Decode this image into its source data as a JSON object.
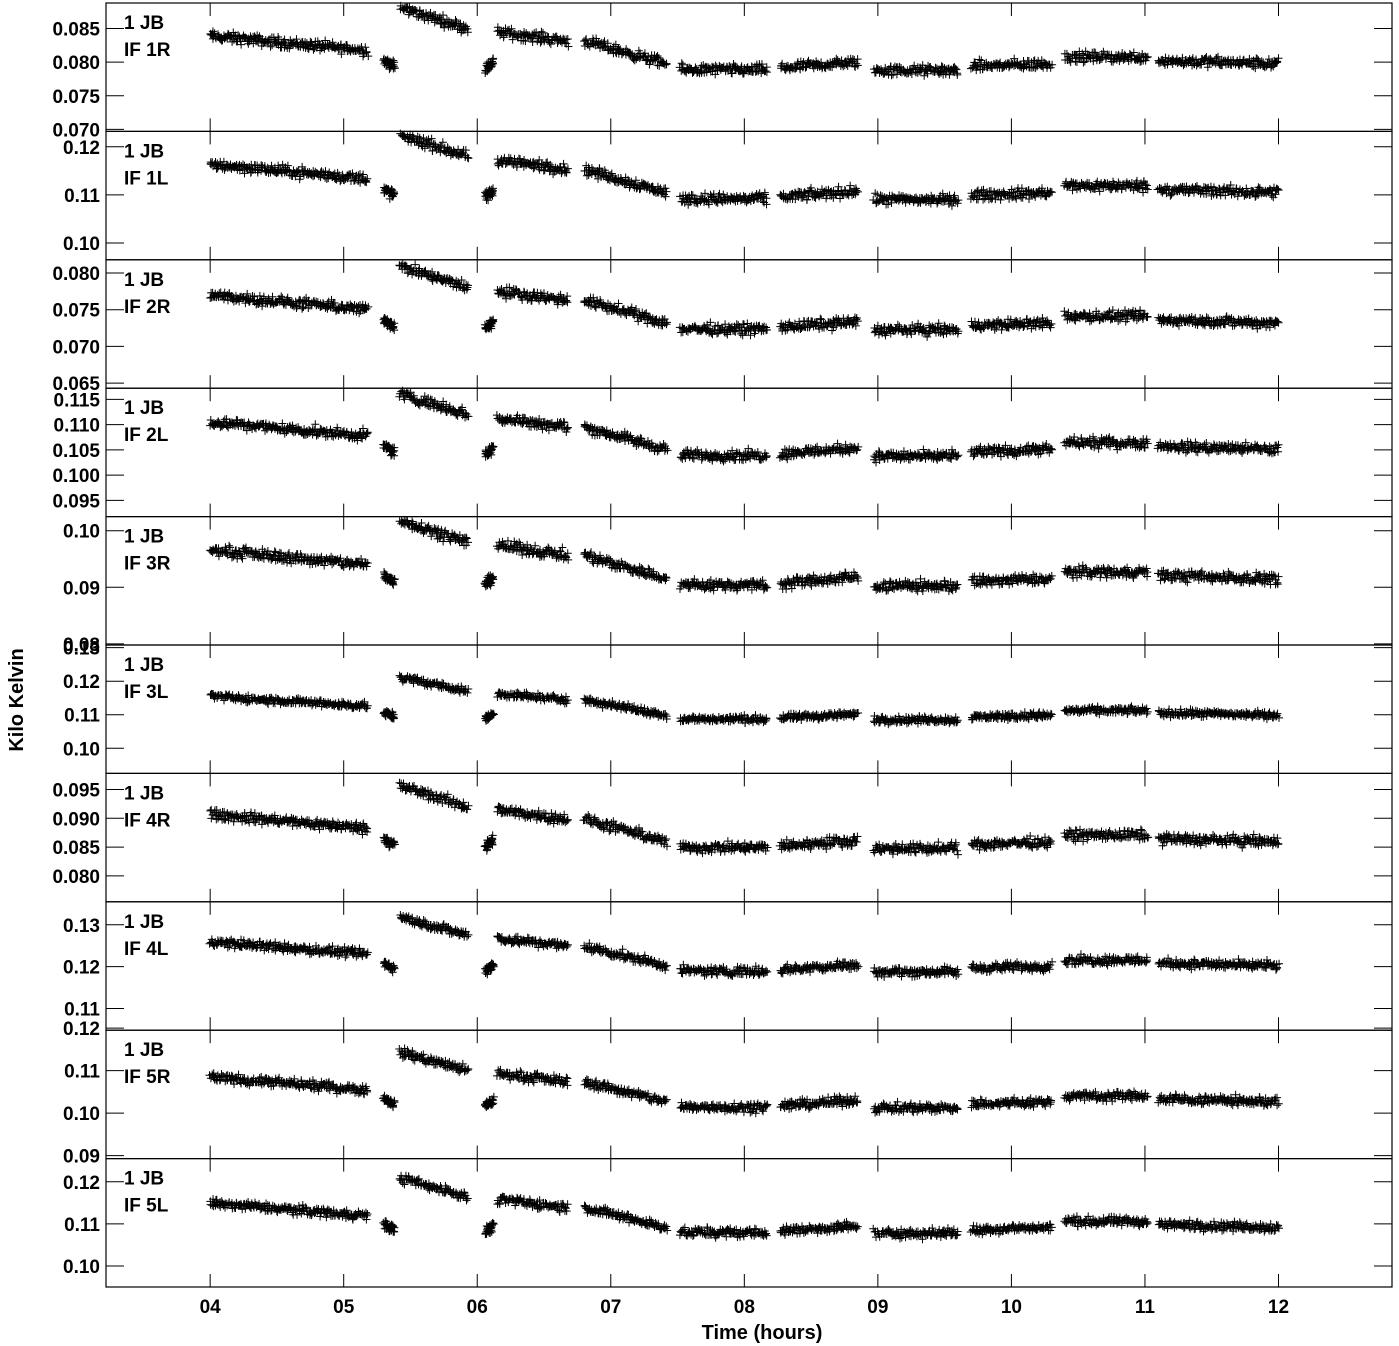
{
  "chart_data": {
    "type": "scatter",
    "xlabel": "Time (hours)",
    "ylabel": "Kilo Kelvin",
    "x_ticks": [
      "04",
      "05",
      "06",
      "07",
      "08",
      "09",
      "10",
      "11",
      "12"
    ],
    "xlim": [
      3.22,
      12.85
    ],
    "marker": "+",
    "color": "#000000",
    "scans": [
      {
        "start": 4.0,
        "end": 5.18,
        "y_start": 0.91,
        "y_end": 0.74
      },
      {
        "start": 5.3,
        "end": 5.38,
        "y_start": 0.62,
        "y_end": 0.55
      },
      {
        "start": 5.42,
        "end": 5.93,
        "y_start": 1.25,
        "y_end": 1.0
      },
      {
        "start": 6.06,
        "end": 6.12,
        "y_start": 0.52,
        "y_end": 0.6
      },
      {
        "start": 6.15,
        "end": 6.68,
        "y_start": 0.96,
        "y_end": 0.85
      },
      {
        "start": 6.8,
        "end": 7.42,
        "y_start": 0.85,
        "y_end": 0.58
      },
      {
        "start": 7.52,
        "end": 8.17,
        "y_start": 0.51,
        "y_end": 0.51
      },
      {
        "start": 8.27,
        "end": 8.85,
        "y_start": 0.53,
        "y_end": 0.6
      },
      {
        "start": 8.97,
        "end": 9.6,
        "y_start": 0.5,
        "y_end": 0.5
      },
      {
        "start": 9.7,
        "end": 10.3,
        "y_start": 0.55,
        "y_end": 0.58
      },
      {
        "start": 10.4,
        "end": 11.02,
        "y_start": 0.66,
        "y_end": 0.66
      },
      {
        "start": 11.1,
        "end": 12.0,
        "y_start": 0.62,
        "y_end": 0.58
      }
    ],
    "panels": [
      {
        "line1": "1 JB",
        "line2": "IF 1R",
        "ylim": [
          0.0697,
          0.0888
        ],
        "y_ticks": [
          0.07,
          0.075,
          0.08,
          0.085
        ],
        "y_tick_labels": [
          "0.070",
          "0.075",
          "0.080",
          "0.085"
        ],
        "base": 0.0725,
        "amp": 0.0125
      },
      {
        "line1": "1 JB",
        "line2": "IF 1L",
        "ylim": [
          0.0965,
          0.1232
        ],
        "y_ticks": [
          0.1,
          0.11,
          0.12
        ],
        "y_tick_labels": [
          "0.10",
          "0.11",
          "0.12"
        ],
        "base": 0.1,
        "amp": 0.018
      },
      {
        "line1": "1 JB",
        "line2": "IF 2R",
        "ylim": [
          0.0643,
          0.0818
        ],
        "y_ticks": [
          0.065,
          0.07,
          0.075,
          0.08
        ],
        "y_tick_labels": [
          "0.065",
          "0.070",
          "0.075",
          "0.080"
        ],
        "base": 0.0665,
        "amp": 0.0115
      },
      {
        "line1": "1 JB",
        "line2": "IF 2L",
        "ylim": [
          0.0918,
          0.1172
        ],
        "y_ticks": [
          0.095,
          0.1,
          0.105,
          0.11,
          0.115
        ],
        "y_tick_labels": [
          "0.095",
          "0.100",
          "0.105",
          "0.110",
          "0.115"
        ],
        "base": 0.0955,
        "amp": 0.0165
      },
      {
        "line1": "1 JB",
        "line2": "IF 3R",
        "ylim": [
          0.0798,
          0.1025
        ],
        "y_ticks": [
          0.08,
          0.09,
          0.1
        ],
        "y_tick_labels": [
          "0.08",
          "0.09",
          "0.10"
        ],
        "base": 0.0825,
        "amp": 0.0155
      },
      {
        "line1": "1 JB",
        "line2": "IF 3L",
        "ylim": [
          0.0925,
          0.1308
        ],
        "y_ticks": [
          0.1,
          0.11,
          0.12,
          0.13
        ],
        "y_tick_labels": [
          "0.10",
          "0.11",
          "0.12",
          "0.13"
        ],
        "base": 0.1,
        "amp": 0.017
      },
      {
        "line1": "1 JB",
        "line2": "IF 4R",
        "ylim": [
          0.0755,
          0.0978
        ],
        "y_ticks": [
          0.08,
          0.085,
          0.09,
          0.095
        ],
        "y_tick_labels": [
          "0.080",
          "0.085",
          "0.090",
          "0.095"
        ],
        "base": 0.0775,
        "amp": 0.0145
      },
      {
        "line1": "1 JB",
        "line2": "IF 4L",
        "ylim": [
          0.1048,
          0.1355
        ],
        "y_ticks": [
          0.11,
          0.12,
          0.13
        ],
        "y_tick_labels": [
          "0.11",
          "0.12",
          "0.13"
        ],
        "base": 0.11,
        "amp": 0.0175
      },
      {
        "line1": "1 JB",
        "line2": "IF 5R",
        "ylim": [
          0.0893,
          0.1195
        ],
        "y_ticks": [
          0.09,
          0.1,
          0.11,
          0.12
        ],
        "y_tick_labels": [
          "0.09",
          "0.10",
          "0.11",
          "0.12"
        ],
        "base": 0.0925,
        "amp": 0.0175
      },
      {
        "line1": "1 JB",
        "line2": "IF 5L",
        "ylim": [
          0.095,
          0.1255
        ],
        "y_ticks": [
          0.1,
          0.11,
          0.12
        ],
        "y_tick_labels": [
          "0.10",
          "0.11",
          "0.12"
        ],
        "base": 0.099,
        "amp": 0.0175
      }
    ]
  }
}
